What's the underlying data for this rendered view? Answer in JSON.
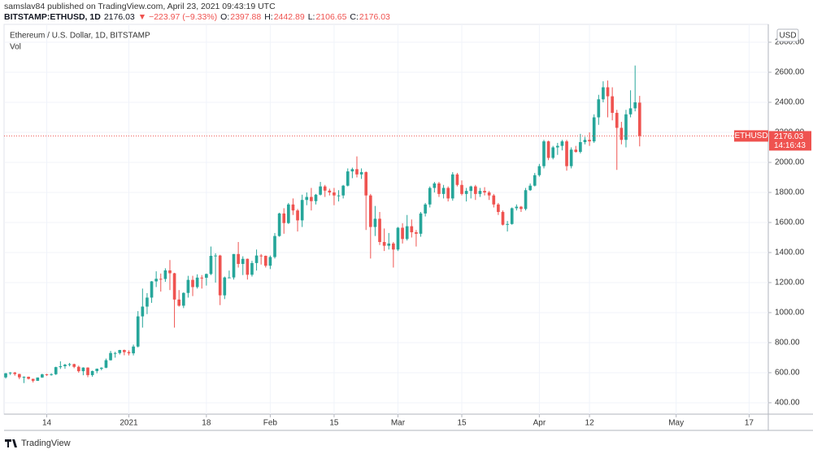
{
  "header": {
    "published": "samslav84 published on TradingView.com, April 23, 2021 09:43:19 UTC",
    "symbol": "BITSTAMP:ETHUSD, 1D",
    "price": "2176.03",
    "change": "▼ −223.97 (−9.33%)",
    "o_label": "O:",
    "o": "2397.88",
    "h_label": "H:",
    "h": "2442.89",
    "l_label": "L:",
    "l": "2106.65",
    "c_label": "C:",
    "c": "2176.03"
  },
  "footer": {
    "brand": "TradingView"
  },
  "chart_data": {
    "type": "candlestick",
    "title": "Ethereum / U.S. Dollar, 1D, BITSTAMP",
    "subtitle": "Vol",
    "currency": "USD",
    "up_color": "#26a69a",
    "down_color": "#ef5350",
    "grid": true,
    "symbol_tag": "ETHUSD",
    "countdown": "14:16:43",
    "xlim": [
      -0.36,
      167.2
    ],
    "ylim": [
      324,
      2919
    ],
    "yticks": [
      {
        "value": 400,
        "label": "400.00"
      },
      {
        "value": 600,
        "label": "600.00"
      },
      {
        "value": 800,
        "label": "800.00"
      },
      {
        "value": 1000,
        "label": "1000.00"
      },
      {
        "value": 1200,
        "label": "1200.00"
      },
      {
        "value": 1400,
        "label": "1400.00"
      },
      {
        "value": 1600,
        "label": "1600.00"
      },
      {
        "value": 1800,
        "label": "1800.00"
      },
      {
        "value": 2000,
        "label": "2000.00"
      },
      {
        "value": 2200,
        "label": "2200.00"
      },
      {
        "value": 2400,
        "label": "2400.00"
      },
      {
        "value": 2600,
        "label": "2600.00"
      },
      {
        "value": 2800,
        "label": "2800.00"
      }
    ],
    "xticks": [
      {
        "value": 9,
        "label": "14"
      },
      {
        "value": 27,
        "label": "2021"
      },
      {
        "value": 44,
        "label": "18"
      },
      {
        "value": 58,
        "label": "Feb"
      },
      {
        "value": 72,
        "label": "15"
      },
      {
        "value": 86,
        "label": "Mar"
      },
      {
        "value": 100,
        "label": "15"
      },
      {
        "value": 117,
        "label": "Apr"
      },
      {
        "value": 128,
        "label": "12"
      },
      {
        "value": 147,
        "label": "May"
      },
      {
        "value": 163,
        "label": "17"
      }
    ],
    "open": [
      569,
      596,
      601,
      591,
      569,
      573,
      559,
      546,
      568,
      589,
      586,
      590,
      637,
      643,
      653,
      657,
      639,
      610,
      634,
      584,
      611,
      626,
      633,
      683,
      731,
      731,
      751,
      737,
      729,
      774,
      975,
      1040,
      1100,
      1208,
      1225,
      1224,
      1281,
      1262,
      1087,
      1046,
      1131,
      1218,
      1170,
      1233,
      1232,
      1257,
      1378,
      1380,
      1115,
      1234,
      1234,
      1390,
      1324,
      1358,
      1252,
      1330,
      1380,
      1378,
      1312,
      1370,
      1510,
      1660,
      1596,
      1720,
      1680,
      1614,
      1750,
      1770,
      1742,
      1785,
      1840,
      1812,
      1800,
      1780,
      1780,
      1845,
      1940,
      1955,
      1920,
      1935,
      1780,
      1570,
      1625,
      1470,
      1445,
      1460,
      1420,
      1565,
      1490,
      1575,
      1535,
      1525,
      1660,
      1720,
      1830,
      1860,
      1790,
      1830,
      1760,
      1920,
      1850,
      1790,
      1810,
      1840,
      1790,
      1810,
      1800,
      1780,
      1720,
      1670,
      1585,
      1590,
      1695,
      1705,
      1690,
      1815,
      1845,
      1915,
      1975,
      2140,
      2030,
      2100,
      2110,
      2140,
      1975,
      2085,
      2070,
      2135,
      2150,
      2140,
      2300,
      2420,
      2500,
      2440,
      2330,
      2230,
      2150,
      2320,
      2360,
      2397.88
    ],
    "high": [
      598,
      604,
      605,
      593,
      575,
      574,
      560,
      568,
      593,
      592,
      596,
      640,
      676,
      659,
      665,
      660,
      647,
      636,
      636,
      614,
      628,
      636,
      694,
      745,
      739,
      752,
      754,
      749,
      787,
      1010,
      1160,
      1130,
      1210,
      1275,
      1260,
      1295,
      1350,
      1265,
      1150,
      1135,
      1245,
      1245,
      1255,
      1250,
      1260,
      1440,
      1395,
      1385,
      1240,
      1280,
      1390,
      1470,
      1375,
      1360,
      1345,
      1420,
      1390,
      1380,
      1380,
      1530,
      1665,
      1695,
      1730,
      1760,
      1690,
      1785,
      1800,
      1830,
      1790,
      1870,
      1850,
      1825,
      1830,
      1815,
      1850,
      1960,
      1965,
      2040,
      1960,
      1940,
      1790,
      1710,
      1670,
      1560,
      1530,
      1470,
      1570,
      1595,
      1650,
      1620,
      1550,
      1670,
      1730,
      1840,
      1870,
      1870,
      1850,
      1840,
      1935,
      1930,
      1880,
      1830,
      1845,
      1850,
      1830,
      1835,
      1810,
      1790,
      1730,
      1680,
      1610,
      1700,
      1720,
      1710,
      1830,
      1860,
      1930,
      1990,
      2150,
      2145,
      2110,
      2130,
      2150,
      2150,
      2100,
      2110,
      2190,
      2170,
      2200,
      2320,
      2450,
      2540,
      2545,
      2500,
      2350,
      2270,
      2350,
      2480,
      2645,
      2442.89
    ],
    "low": [
      561,
      585,
      580,
      557,
      531,
      555,
      535,
      545,
      566,
      579,
      580,
      585,
      625,
      626,
      642,
      630,
      600,
      583,
      570,
      573,
      596,
      616,
      630,
      681,
      700,
      721,
      716,
      715,
      715,
      768,
      900,
      990,
      1065,
      1170,
      1140,
      1205,
      1150,
      900,
      1040,
      1030,
      1100,
      1110,
      1160,
      1160,
      1180,
      1250,
      1200,
      1050,
      1090,
      1230,
      1220,
      1300,
      1250,
      1220,
      1240,
      1280,
      1320,
      1300,
      1290,
      1360,
      1505,
      1525,
      1590,
      1650,
      1540,
      1570,
      1715,
      1680,
      1720,
      1780,
      1770,
      1780,
      1715,
      1740,
      1760,
      1840,
      1895,
      1900,
      1890,
      1550,
      1360,
      1510,
      1450,
      1410,
      1420,
      1300,
      1410,
      1460,
      1480,
      1500,
      1440,
      1505,
      1640,
      1700,
      1800,
      1770,
      1760,
      1740,
      1745,
      1840,
      1780,
      1740,
      1760,
      1750,
      1770,
      1780,
      1750,
      1700,
      1650,
      1580,
      1540,
      1585,
      1680,
      1670,
      1680,
      1810,
      1840,
      1905,
      1960,
      2015,
      2020,
      2050,
      2080,
      1945,
      1960,
      2065,
      2060,
      2120,
      2110,
      2130,
      2250,
      2400,
      2300,
      2280,
      1950,
      2120,
      2100,
      2300,
      2340,
      2106.65
    ],
    "close": [
      596,
      601,
      591,
      569,
      573,
      559,
      546,
      568,
      589,
      586,
      590,
      637,
      643,
      653,
      657,
      639,
      610,
      634,
      584,
      611,
      626,
      633,
      683,
      731,
      731,
      751,
      737,
      729,
      774,
      975,
      1040,
      1100,
      1208,
      1225,
      1224,
      1281,
      1262,
      1087,
      1046,
      1131,
      1218,
      1170,
      1233,
      1232,
      1257,
      1378,
      1380,
      1115,
      1234,
      1234,
      1390,
      1324,
      1358,
      1252,
      1330,
      1380,
      1378,
      1312,
      1370,
      1510,
      1660,
      1596,
      1720,
      1680,
      1614,
      1750,
      1770,
      1742,
      1785,
      1840,
      1812,
      1800,
      1780,
      1780,
      1845,
      1940,
      1955,
      1920,
      1935,
      1780,
      1570,
      1625,
      1470,
      1445,
      1460,
      1420,
      1565,
      1490,
      1575,
      1535,
      1525,
      1660,
      1720,
      1830,
      1860,
      1790,
      1830,
      1760,
      1920,
      1850,
      1790,
      1810,
      1840,
      1790,
      1810,
      1800,
      1780,
      1720,
      1670,
      1585,
      1590,
      1695,
      1705,
      1690,
      1815,
      1845,
      1915,
      1975,
      2140,
      2030,
      2100,
      2110,
      2140,
      1975,
      2085,
      2070,
      2135,
      2150,
      2140,
      2300,
      2420,
      2500,
      2440,
      2330,
      2230,
      2150,
      2320,
      2360,
      2400,
      2176.03
    ]
  }
}
